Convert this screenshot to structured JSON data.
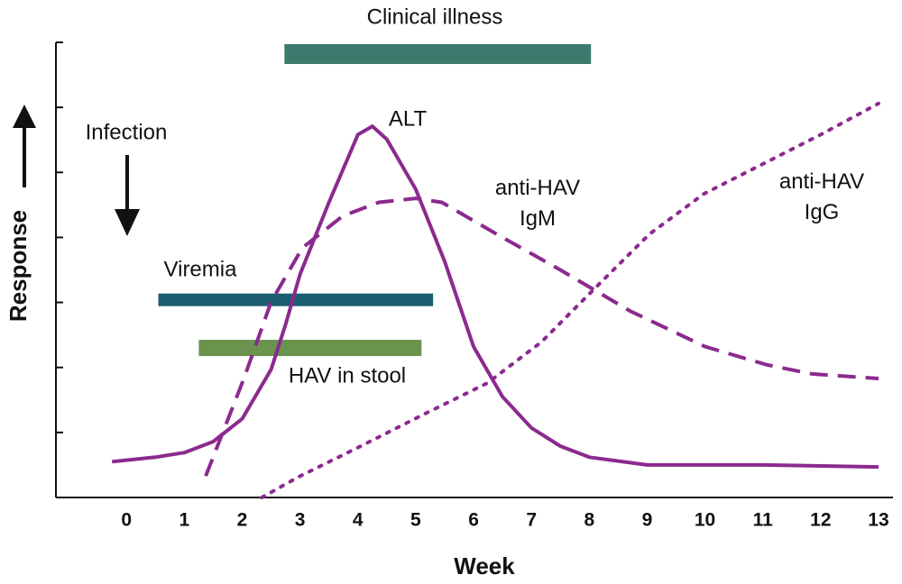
{
  "chart_data": {
    "type": "line",
    "x_label": "Week",
    "y_label": "Response",
    "xlim": [
      -1.22,
      13.25
    ],
    "xticks": [
      0,
      1,
      2,
      3,
      4,
      5,
      6,
      7,
      8,
      9,
      10,
      11,
      12,
      13
    ],
    "ylim": [
      0,
      7
    ],
    "yticks": [
      1,
      2,
      3,
      4,
      5,
      6,
      7
    ],
    "series": [
      {
        "name": "ALT",
        "color": "#8b2a8e",
        "style": "solid",
        "x": [
          -0.25,
          0.5,
          1,
          1.5,
          2,
          2.5,
          2.75,
          3,
          3.5,
          4,
          4.25,
          4.5,
          5,
          5.5,
          6,
          6.5,
          7,
          7.5,
          8,
          9,
          10,
          11,
          13
        ],
        "values": [
          0.55,
          0.62,
          0.69,
          0.86,
          1.21,
          1.97,
          2.66,
          3.43,
          4.54,
          5.58,
          5.71,
          5.51,
          4.74,
          3.63,
          2.32,
          1.55,
          1.07,
          0.79,
          0.62,
          0.5,
          0.5,
          0.5,
          0.47
        ]
      },
      {
        "name": "anti-HAV IgM",
        "color": "#8b2a8e",
        "style": "dashed",
        "x": [
          1.37,
          2.03,
          2.5,
          3.04,
          3.74,
          4.36,
          5,
          5.45,
          6.4,
          7.5,
          8.7,
          10,
          11.07,
          11.85,
          13
        ],
        "values": [
          0.33,
          1.83,
          3.01,
          3.84,
          4.33,
          4.54,
          4.6,
          4.54,
          4.05,
          3.5,
          2.87,
          2.32,
          2.04,
          1.9,
          1.83
        ]
      },
      {
        "name": "anti-HAV IgG",
        "color": "#8b2a8e",
        "style": "dotted",
        "x": [
          2.34,
          2.96,
          4.05,
          5.14,
          6.24,
          7.17,
          8.1,
          9.04,
          9.98,
          11.07,
          12,
          13
        ],
        "values": [
          0,
          0.31,
          0.79,
          1.28,
          1.76,
          2.39,
          3.22,
          4.05,
          4.67,
          5.16,
          5.58,
          6.06
        ]
      }
    ],
    "intervals": [
      {
        "name": "Clinical illness",
        "start": 2.73,
        "end": 8.03,
        "level": 6.82,
        "color": "#3d7a6d"
      },
      {
        "name": "Viremia",
        "start": 0.55,
        "end": 5.3,
        "level": 3.04,
        "color": "#1a5e70"
      },
      {
        "name": "HAV in stool",
        "start": 1.25,
        "end": 5.1,
        "level": 2.3,
        "color": "#6a944e"
      }
    ],
    "annotations": [
      "Infection"
    ]
  }
}
